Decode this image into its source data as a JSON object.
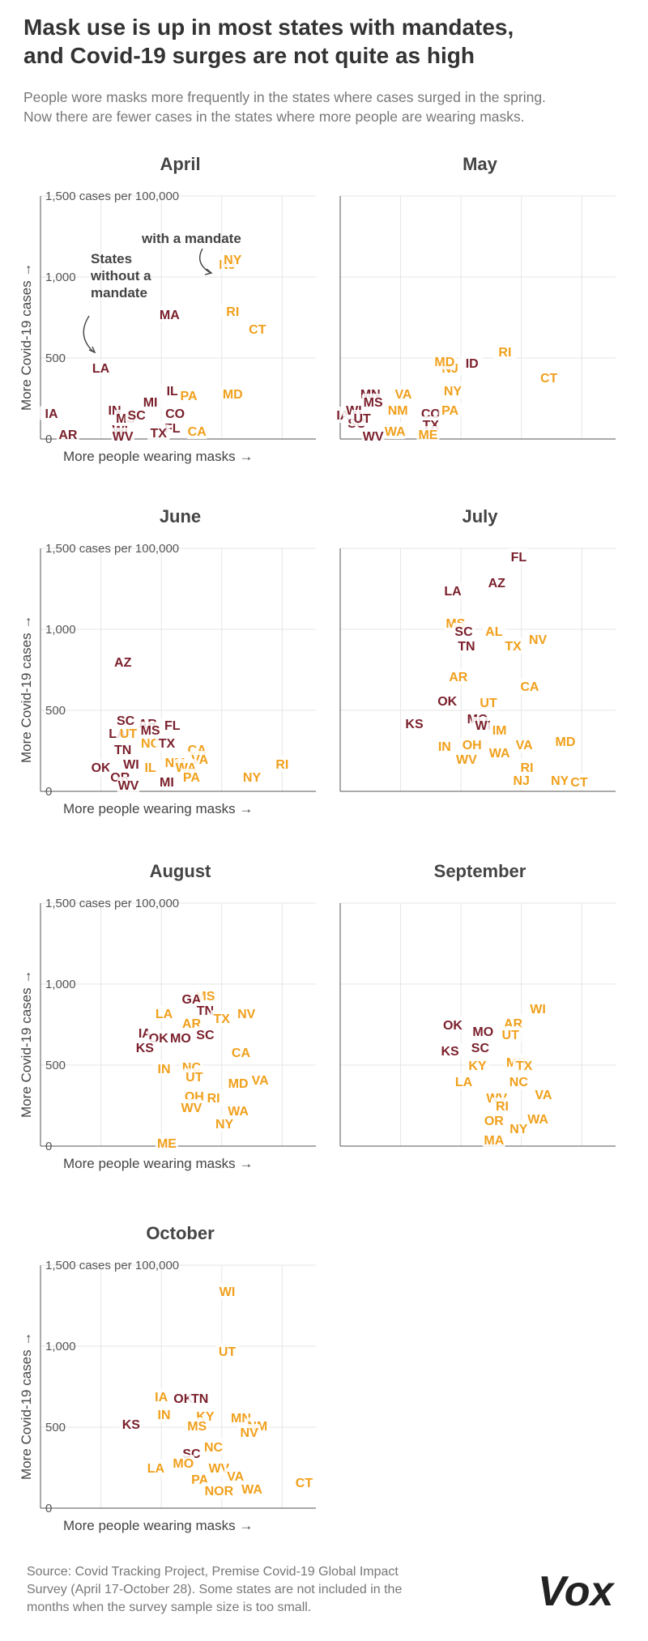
{
  "header": {
    "title_lines": [
      "Mask use is up in most states with mandates,",
      "and Covid-19 surges are not quite as high"
    ],
    "subtitle_lines": [
      "People wore masks more frequently in the states where cases surged in the spring.",
      "Now there are fewer cases in the states where more people are wearing masks."
    ]
  },
  "footer": {
    "source_lines": [
      "Source: Covid Tracking Project, Premise Covid-19 Global Impact",
      "Survey (April 17-October 28). Some states are not included in the",
      "months when the survey sample size is too small."
    ],
    "logo": "Vox"
  },
  "colors": {
    "without_mandate": "#7a1f2b",
    "with_mandate": "#f0a01c",
    "grid": "#e6e6e6",
    "axis": "#555555"
  },
  "chart_data": [
    {
      "type": "scatter",
      "title": "April",
      "xlabel": "More people wearing masks →",
      "ylabel": "More Covid-19 cases →",
      "ylim": [
        0,
        1500
      ],
      "yticks": [
        "0",
        "500",
        "1,000",
        "1,500 cases per 100,000"
      ],
      "annotations": [
        {
          "text_lines": [
            "with a mandate"
          ],
          "arrow_to": "NJ"
        },
        {
          "text_lines": [
            "States",
            "without a",
            "mandate"
          ],
          "arrow_to": "LA"
        }
      ],
      "points": [
        {
          "label": "IA",
          "x": 0.04,
          "y": 160,
          "mandate": false
        },
        {
          "label": "AR",
          "x": 0.1,
          "y": 30,
          "mandate": false
        },
        {
          "label": "LA",
          "x": 0.22,
          "y": 440,
          "mandate": false
        },
        {
          "label": "MA",
          "x": 0.47,
          "y": 770,
          "mandate": false
        },
        {
          "label": "IN",
          "x": 0.27,
          "y": 180,
          "mandate": false
        },
        {
          "label": "MI",
          "x": 0.4,
          "y": 230,
          "mandate": false
        },
        {
          "label": "IL",
          "x": 0.48,
          "y": 300,
          "mandate": false
        },
        {
          "label": "CO",
          "x": 0.49,
          "y": 160,
          "mandate": false
        },
        {
          "label": "FL",
          "x": 0.48,
          "y": 70,
          "mandate": false
        },
        {
          "label": "TX",
          "x": 0.43,
          "y": 40,
          "mandate": false
        },
        {
          "label": "WI",
          "x": 0.29,
          "y": 60,
          "mandate": false
        },
        {
          "label": "WV",
          "x": 0.3,
          "y": 20,
          "mandate": false
        },
        {
          "label": "MS",
          "x": 0.31,
          "y": 130,
          "mandate": false
        },
        {
          "label": "SC",
          "x": 0.35,
          "y": 150,
          "mandate": false
        },
        {
          "label": "PA",
          "x": 0.54,
          "y": 270,
          "mandate": true
        },
        {
          "label": "CA",
          "x": 0.57,
          "y": 50,
          "mandate": true
        },
        {
          "label": "MD",
          "x": 0.7,
          "y": 280,
          "mandate": true
        },
        {
          "label": "CT",
          "x": 0.79,
          "y": 680,
          "mandate": true
        },
        {
          "label": "RI",
          "x": 0.7,
          "y": 790,
          "mandate": true
        },
        {
          "label": "NJ",
          "x": 0.68,
          "y": 1080,
          "mandate": true
        },
        {
          "label": "NY",
          "x": 0.7,
          "y": 1110,
          "mandate": true
        }
      ]
    },
    {
      "type": "scatter",
      "title": "May",
      "ylim": [
        0,
        1500
      ],
      "points": [
        {
          "label": "IA",
          "x": 0.01,
          "y": 150,
          "mandate": false
        },
        {
          "label": "WI",
          "x": 0.05,
          "y": 180,
          "mandate": false
        },
        {
          "label": "SC",
          "x": 0.06,
          "y": 100,
          "mandate": false
        },
        {
          "label": "UT",
          "x": 0.08,
          "y": 130,
          "mandate": false
        },
        {
          "label": "MN",
          "x": 0.11,
          "y": 280,
          "mandate": false
        },
        {
          "label": "MS",
          "x": 0.12,
          "y": 230,
          "mandate": false
        },
        {
          "label": "WV",
          "x": 0.12,
          "y": 20,
          "mandate": false
        },
        {
          "label": "NM",
          "x": 0.21,
          "y": 180,
          "mandate": true
        },
        {
          "label": "VA",
          "x": 0.23,
          "y": 280,
          "mandate": true
        },
        {
          "label": "WA",
          "x": 0.2,
          "y": 50,
          "mandate": true
        },
        {
          "label": "CO",
          "x": 0.33,
          "y": 160,
          "mandate": false
        },
        {
          "label": "TX",
          "x": 0.33,
          "y": 90,
          "mandate": false
        },
        {
          "label": "ME",
          "x": 0.32,
          "y": 30,
          "mandate": true
        },
        {
          "label": "PA",
          "x": 0.4,
          "y": 180,
          "mandate": true
        },
        {
          "label": "NY",
          "x": 0.41,
          "y": 300,
          "mandate": true
        },
        {
          "label": "NJ",
          "x": 0.4,
          "y": 440,
          "mandate": true
        },
        {
          "label": "MD",
          "x": 0.38,
          "y": 480,
          "mandate": true
        },
        {
          "label": "ID",
          "x": 0.48,
          "y": 470,
          "mandate": false
        },
        {
          "label": "RI",
          "x": 0.6,
          "y": 540,
          "mandate": true
        },
        {
          "label": "CT",
          "x": 0.76,
          "y": 380,
          "mandate": true
        }
      ]
    },
    {
      "type": "scatter",
      "title": "June",
      "ylim": [
        0,
        1500
      ],
      "points": [
        {
          "label": "AZ",
          "x": 0.3,
          "y": 800,
          "mandate": false
        },
        {
          "label": "SC",
          "x": 0.31,
          "y": 440,
          "mandate": false
        },
        {
          "label": "AR",
          "x": 0.39,
          "y": 420,
          "mandate": false
        },
        {
          "label": "FL",
          "x": 0.48,
          "y": 410,
          "mandate": false
        },
        {
          "label": "MS",
          "x": 0.4,
          "y": 380,
          "mandate": false
        },
        {
          "label": "LA",
          "x": 0.28,
          "y": 360,
          "mandate": false
        },
        {
          "label": "UT",
          "x": 0.32,
          "y": 360,
          "mandate": true
        },
        {
          "label": "NC",
          "x": 0.4,
          "y": 300,
          "mandate": true
        },
        {
          "label": "TX",
          "x": 0.46,
          "y": 300,
          "mandate": false
        },
        {
          "label": "TN",
          "x": 0.3,
          "y": 260,
          "mandate": false
        },
        {
          "label": "OK",
          "x": 0.22,
          "y": 150,
          "mandate": false
        },
        {
          "label": "WI",
          "x": 0.33,
          "y": 170,
          "mandate": false
        },
        {
          "label": "OR",
          "x": 0.29,
          "y": 90,
          "mandate": false
        },
        {
          "label": "WV",
          "x": 0.32,
          "y": 40,
          "mandate": false
        },
        {
          "label": "IL",
          "x": 0.4,
          "y": 150,
          "mandate": true
        },
        {
          "label": "MI",
          "x": 0.46,
          "y": 60,
          "mandate": false
        },
        {
          "label": "CA",
          "x": 0.57,
          "y": 260,
          "mandate": true
        },
        {
          "label": "VA",
          "x": 0.58,
          "y": 200,
          "mandate": true
        },
        {
          "label": "NM",
          "x": 0.49,
          "y": 180,
          "mandate": true
        },
        {
          "label": "WA",
          "x": 0.53,
          "y": 150,
          "mandate": true
        },
        {
          "label": "PA",
          "x": 0.55,
          "y": 90,
          "mandate": true
        },
        {
          "label": "NY",
          "x": 0.77,
          "y": 90,
          "mandate": true
        },
        {
          "label": "RI",
          "x": 0.88,
          "y": 170,
          "mandate": true
        }
      ]
    },
    {
      "type": "scatter",
      "title": "July",
      "ylim": [
        0,
        1500
      ],
      "points": [
        {
          "label": "FL",
          "x": 0.65,
          "y": 1450,
          "mandate": false
        },
        {
          "label": "AZ",
          "x": 0.57,
          "y": 1290,
          "mandate": false
        },
        {
          "label": "LA",
          "x": 0.41,
          "y": 1240,
          "mandate": false
        },
        {
          "label": "MS",
          "x": 0.42,
          "y": 1040,
          "mandate": true
        },
        {
          "label": "SC",
          "x": 0.45,
          "y": 990,
          "mandate": false
        },
        {
          "label": "AL",
          "x": 0.56,
          "y": 990,
          "mandate": true
        },
        {
          "label": "TN",
          "x": 0.46,
          "y": 900,
          "mandate": false
        },
        {
          "label": "NV",
          "x": 0.72,
          "y": 940,
          "mandate": true
        },
        {
          "label": "TX",
          "x": 0.63,
          "y": 900,
          "mandate": true
        },
        {
          "label": "AR",
          "x": 0.43,
          "y": 710,
          "mandate": true
        },
        {
          "label": "CA",
          "x": 0.69,
          "y": 650,
          "mandate": true
        },
        {
          "label": "OK",
          "x": 0.39,
          "y": 560,
          "mandate": false
        },
        {
          "label": "UT",
          "x": 0.54,
          "y": 550,
          "mandate": true
        },
        {
          "label": "KS",
          "x": 0.27,
          "y": 420,
          "mandate": false
        },
        {
          "label": "MO",
          "x": 0.5,
          "y": 450,
          "mandate": false
        },
        {
          "label": "WI",
          "x": 0.52,
          "y": 410,
          "mandate": false
        },
        {
          "label": "IM",
          "x": 0.58,
          "y": 380,
          "mandate": true
        },
        {
          "label": "IN",
          "x": 0.38,
          "y": 280,
          "mandate": true
        },
        {
          "label": "OH",
          "x": 0.48,
          "y": 290,
          "mandate": true
        },
        {
          "label": "WA",
          "x": 0.58,
          "y": 240,
          "mandate": true
        },
        {
          "label": "VA",
          "x": 0.67,
          "y": 290,
          "mandate": true
        },
        {
          "label": "MD",
          "x": 0.82,
          "y": 310,
          "mandate": true
        },
        {
          "label": "WV",
          "x": 0.46,
          "y": 200,
          "mandate": true
        },
        {
          "label": "RI",
          "x": 0.68,
          "y": 150,
          "mandate": true
        },
        {
          "label": "NJ",
          "x": 0.66,
          "y": 70,
          "mandate": true
        },
        {
          "label": "NY",
          "x": 0.8,
          "y": 70,
          "mandate": true
        },
        {
          "label": "CT",
          "x": 0.87,
          "y": 60,
          "mandate": true
        }
      ]
    },
    {
      "type": "scatter",
      "title": "August",
      "ylim": [
        0,
        1500
      ],
      "points": [
        {
          "label": "MS",
          "x": 0.6,
          "y": 930,
          "mandate": true
        },
        {
          "label": "GA",
          "x": 0.55,
          "y": 910,
          "mandate": false
        },
        {
          "label": "TN",
          "x": 0.6,
          "y": 840,
          "mandate": false
        },
        {
          "label": "NV",
          "x": 0.75,
          "y": 820,
          "mandate": true
        },
        {
          "label": "LA",
          "x": 0.45,
          "y": 820,
          "mandate": true
        },
        {
          "label": "TX",
          "x": 0.66,
          "y": 790,
          "mandate": true
        },
        {
          "label": "AR",
          "x": 0.55,
          "y": 760,
          "mandate": true
        },
        {
          "label": "IA",
          "x": 0.38,
          "y": 700,
          "mandate": false
        },
        {
          "label": "OK",
          "x": 0.43,
          "y": 670,
          "mandate": false
        },
        {
          "label": "MO",
          "x": 0.51,
          "y": 670,
          "mandate": false
        },
        {
          "label": "SC",
          "x": 0.6,
          "y": 690,
          "mandate": false
        },
        {
          "label": "KS",
          "x": 0.38,
          "y": 610,
          "mandate": false
        },
        {
          "label": "CA",
          "x": 0.73,
          "y": 580,
          "mandate": true
        },
        {
          "label": "IN",
          "x": 0.45,
          "y": 480,
          "mandate": true
        },
        {
          "label": "NC",
          "x": 0.55,
          "y": 490,
          "mandate": true
        },
        {
          "label": "UT",
          "x": 0.56,
          "y": 430,
          "mandate": true
        },
        {
          "label": "VA",
          "x": 0.8,
          "y": 410,
          "mandate": true
        },
        {
          "label": "MD",
          "x": 0.72,
          "y": 390,
          "mandate": true
        },
        {
          "label": "RI",
          "x": 0.63,
          "y": 300,
          "mandate": true
        },
        {
          "label": "OH",
          "x": 0.56,
          "y": 310,
          "mandate": true
        },
        {
          "label": "WV",
          "x": 0.55,
          "y": 240,
          "mandate": true
        },
        {
          "label": "WA",
          "x": 0.72,
          "y": 220,
          "mandate": true
        },
        {
          "label": "NY",
          "x": 0.67,
          "y": 140,
          "mandate": true
        },
        {
          "label": "ME",
          "x": 0.46,
          "y": 20,
          "mandate": true
        }
      ]
    },
    {
      "type": "scatter",
      "title": "September",
      "ylim": [
        0,
        1500
      ],
      "points": [
        {
          "label": "WI",
          "x": 0.72,
          "y": 850,
          "mandate": true
        },
        {
          "label": "OK",
          "x": 0.41,
          "y": 750,
          "mandate": false
        },
        {
          "label": "AR",
          "x": 0.63,
          "y": 760,
          "mandate": true
        },
        {
          "label": "MO",
          "x": 0.52,
          "y": 710,
          "mandate": false
        },
        {
          "label": "UT",
          "x": 0.62,
          "y": 690,
          "mandate": true
        },
        {
          "label": "KS",
          "x": 0.4,
          "y": 590,
          "mandate": false
        },
        {
          "label": "SC",
          "x": 0.51,
          "y": 610,
          "mandate": false
        },
        {
          "label": "MS",
          "x": 0.64,
          "y": 520,
          "mandate": true
        },
        {
          "label": "KY",
          "x": 0.5,
          "y": 500,
          "mandate": true
        },
        {
          "label": "TX",
          "x": 0.67,
          "y": 500,
          "mandate": true
        },
        {
          "label": "LA",
          "x": 0.45,
          "y": 400,
          "mandate": true
        },
        {
          "label": "NC",
          "x": 0.65,
          "y": 400,
          "mandate": true
        },
        {
          "label": "VA",
          "x": 0.74,
          "y": 320,
          "mandate": true
        },
        {
          "label": "WV",
          "x": 0.57,
          "y": 300,
          "mandate": true
        },
        {
          "label": "RI",
          "x": 0.59,
          "y": 250,
          "mandate": true
        },
        {
          "label": "WA",
          "x": 0.72,
          "y": 170,
          "mandate": true
        },
        {
          "label": "OR",
          "x": 0.56,
          "y": 160,
          "mandate": true
        },
        {
          "label": "NY",
          "x": 0.65,
          "y": 110,
          "mandate": true
        },
        {
          "label": "MA",
          "x": 0.56,
          "y": 40,
          "mandate": true
        }
      ]
    },
    {
      "type": "scatter",
      "title": "October",
      "ylim": [
        0,
        1500
      ],
      "points": [
        {
          "label": "WI",
          "x": 0.68,
          "y": 1340,
          "mandate": true
        },
        {
          "label": "UT",
          "x": 0.68,
          "y": 970,
          "mandate": true
        },
        {
          "label": "IA",
          "x": 0.44,
          "y": 690,
          "mandate": true
        },
        {
          "label": "OK",
          "x": 0.52,
          "y": 680,
          "mandate": false
        },
        {
          "label": "TN",
          "x": 0.58,
          "y": 680,
          "mandate": false
        },
        {
          "label": "IN",
          "x": 0.45,
          "y": 580,
          "mandate": true
        },
        {
          "label": "KY",
          "x": 0.6,
          "y": 570,
          "mandate": true
        },
        {
          "label": "MN",
          "x": 0.73,
          "y": 560,
          "mandate": true
        },
        {
          "label": "NM",
          "x": 0.79,
          "y": 510,
          "mandate": true
        },
        {
          "label": "KS",
          "x": 0.33,
          "y": 520,
          "mandate": false
        },
        {
          "label": "MS",
          "x": 0.57,
          "y": 510,
          "mandate": true
        },
        {
          "label": "NV",
          "x": 0.76,
          "y": 470,
          "mandate": true
        },
        {
          "label": "NC",
          "x": 0.63,
          "y": 380,
          "mandate": true
        },
        {
          "label": "SC",
          "x": 0.55,
          "y": 340,
          "mandate": false
        },
        {
          "label": "LA",
          "x": 0.42,
          "y": 250,
          "mandate": true
        },
        {
          "label": "MO",
          "x": 0.52,
          "y": 280,
          "mandate": true
        },
        {
          "label": "WV",
          "x": 0.65,
          "y": 250,
          "mandate": true
        },
        {
          "label": "VA",
          "x": 0.71,
          "y": 200,
          "mandate": true
        },
        {
          "label": "PA",
          "x": 0.58,
          "y": 180,
          "mandate": true
        },
        {
          "label": "NOR",
          "x": 0.65,
          "y": 110,
          "mandate": true
        },
        {
          "label": "WA",
          "x": 0.77,
          "y": 120,
          "mandate": true
        },
        {
          "label": "CT",
          "x": 0.96,
          "y": 160,
          "mandate": true
        }
      ]
    }
  ]
}
